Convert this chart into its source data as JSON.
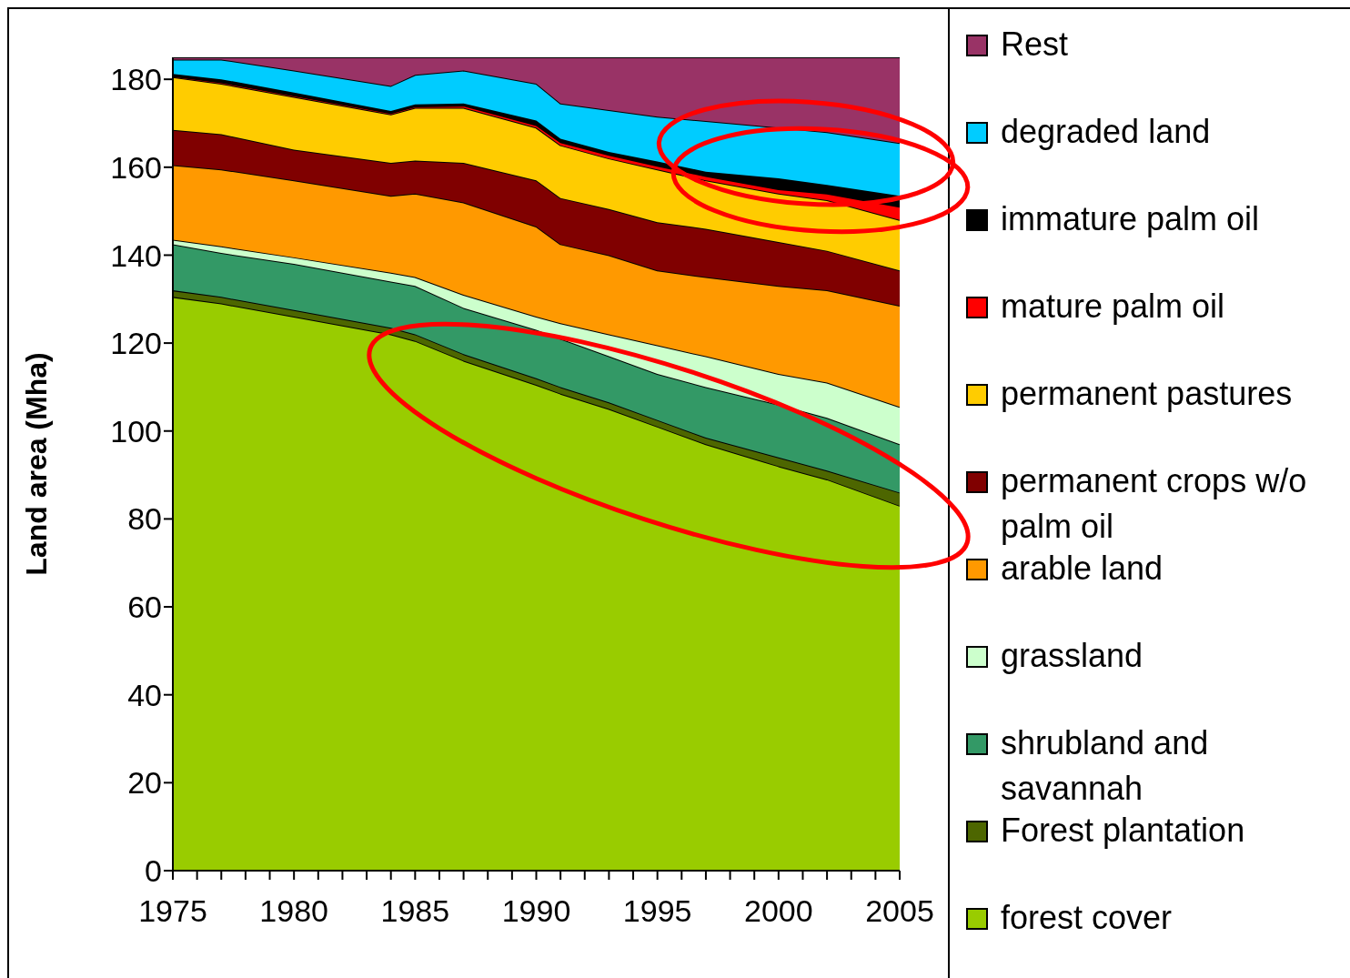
{
  "chart_data": {
    "type": "area",
    "stacked": true,
    "ylabel": "Land area (Mha)",
    "legend": "right",
    "x": [
      1975,
      1977,
      1980,
      1984,
      1985,
      1987,
      1990,
      1991,
      1993,
      1995,
      1997,
      2000,
      2002,
      2005
    ],
    "xlim": [
      1975,
      2005
    ],
    "xticks": [
      1975,
      {
        "value": 1976,
        "label": null
      },
      {
        "value": 1977,
        "label": null
      },
      {
        "value": 1978,
        "label": null
      },
      {
        "value": 1979,
        "label": null
      },
      1980,
      {
        "value": 1981,
        "label": null
      },
      {
        "value": 1982,
        "label": null
      },
      {
        "value": 1983,
        "label": null
      },
      {
        "value": 1984,
        "label": null
      },
      1985,
      {
        "value": 1986,
        "label": null
      },
      {
        "value": 1987,
        "label": null
      },
      {
        "value": 1988,
        "label": null
      },
      {
        "value": 1989,
        "label": null
      },
      1990,
      {
        "value": 1991,
        "label": null
      },
      {
        "value": 1992,
        "label": null
      },
      {
        "value": 1993,
        "label": null
      },
      {
        "value": 1994,
        "label": null
      },
      1995,
      {
        "value": 1996,
        "label": null
      },
      {
        "value": 1997,
        "label": null
      },
      {
        "value": 1998,
        "label": null
      },
      {
        "value": 1999,
        "label": null
      },
      2000,
      {
        "value": 2001,
        "label": null
      },
      {
        "value": 2002,
        "label": null
      },
      {
        "value": 2003,
        "label": null
      },
      {
        "value": 2004,
        "label": null
      },
      2005
    ],
    "ylim": [
      0,
      185
    ],
    "yticks": [
      0,
      20,
      40,
      60,
      80,
      100,
      120,
      140,
      160,
      180
    ],
    "series": [
      {
        "name": "forest cover",
        "color": "#99cc00",
        "values": [
          130.5,
          129,
          126,
          122,
          120.5,
          116,
          110.5,
          108.5,
          105,
          101,
          97,
          92,
          89,
          83
        ]
      },
      {
        "name": "Forest plantation",
        "color": "#4d6600",
        "values": [
          1.5,
          1.5,
          1.5,
          1.5,
          1.5,
          1.5,
          1.5,
          1.5,
          1.5,
          1.5,
          1.5,
          2,
          2,
          3
        ]
      },
      {
        "name": "shrubland and savannah",
        "color": "#339966",
        "values": [
          10.5,
          10,
          10.5,
          10.5,
          11,
          10.5,
          11,
          11,
          10.5,
          10.5,
          11.5,
          12,
          12,
          11
        ]
      },
      {
        "name": "grassland",
        "color": "#ccffcc",
        "values": [
          1,
          1.5,
          1.5,
          2,
          2,
          3,
          3,
          3.5,
          5,
          6.5,
          7,
          7,
          8,
          8.5
        ]
      },
      {
        "name": "arable land",
        "color": "#ff9900",
        "values": [
          17,
          17.5,
          17.5,
          17.5,
          19,
          21,
          20.5,
          18,
          18,
          17,
          18,
          20,
          21,
          23
        ]
      },
      {
        "name": "permanent crops w/o palm oil",
        "color": "#800000",
        "values": [
          8,
          8,
          7,
          7.5,
          7.5,
          9,
          10.5,
          10.5,
          10.5,
          11,
          11,
          10,
          9,
          8
        ]
      },
      {
        "name": "permanent pastures",
        "color": "#ffcc00",
        "values": [
          12,
          11.5,
          12,
          11,
          12,
          12.5,
          12,
          12,
          11.5,
          12,
          11,
          11,
          11.5,
          11.5
        ]
      },
      {
        "name": "mature palm oil",
        "color": "#ff0000",
        "values": [
          0.2,
          0.3,
          0.3,
          0.3,
          0.3,
          0.5,
          0.6,
          0.7,
          0.8,
          0.8,
          1,
          1,
          1.5,
          3
        ]
      },
      {
        "name": "immature palm oil",
        "color": "#000000",
        "values": [
          0.5,
          0.7,
          0.7,
          0.5,
          0.5,
          0.5,
          1,
          0.8,
          0.7,
          1,
          1,
          2.5,
          2,
          2.5
        ]
      },
      {
        "name": "degraded land",
        "color": "#00ccff",
        "values": [
          3.3,
          4.5,
          5,
          5.7,
          6.7,
          7.5,
          8.4,
          8,
          9.5,
          10.2,
          11.5,
          11.5,
          12,
          12
        ]
      },
      {
        "name": "Rest",
        "color": "#993366",
        "values": [
          0.5,
          0.5,
          3,
          6.5,
          4,
          3,
          6,
          10.5,
          12,
          13.5,
          14.5,
          16,
          17,
          19.5
        ]
      }
    ]
  }
}
